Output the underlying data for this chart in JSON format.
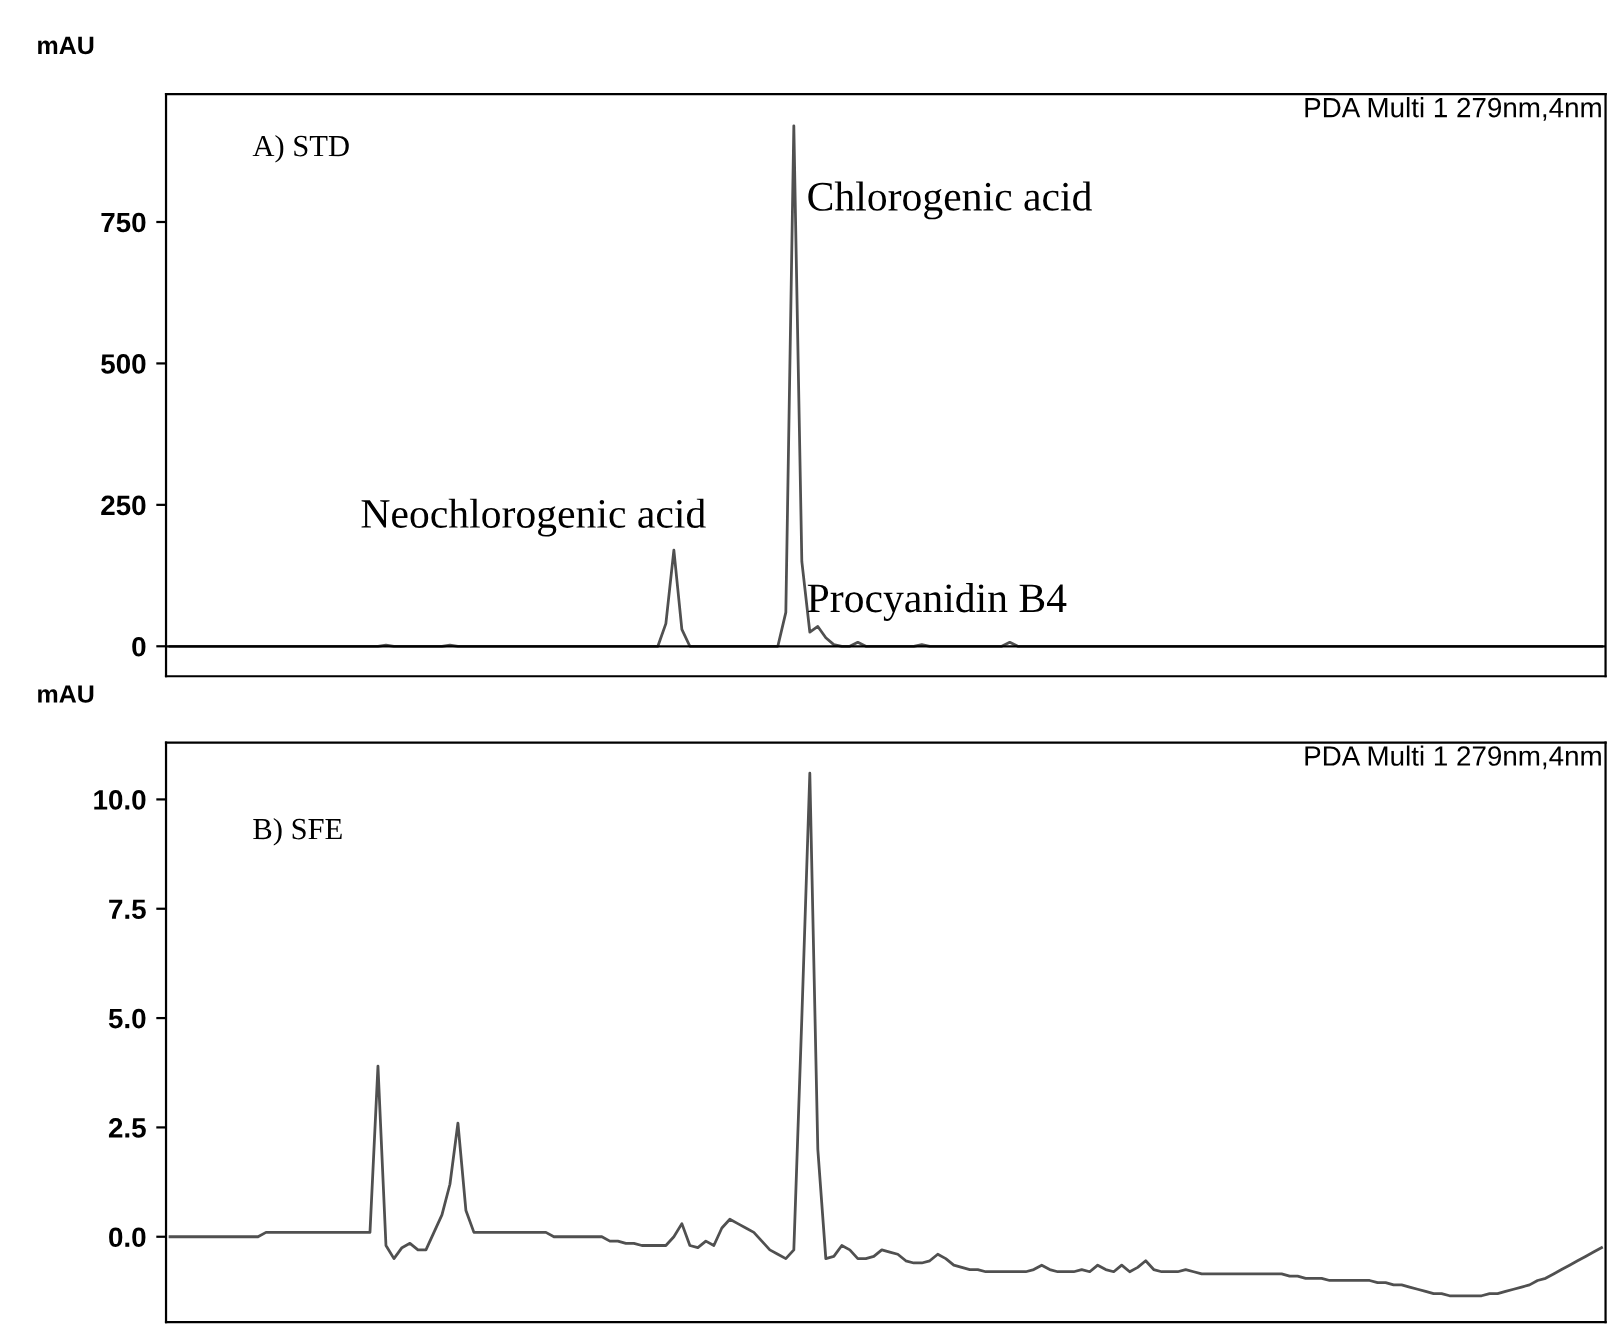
{
  "chart_data": [
    {
      "type": "line",
      "ylabel": "mAU",
      "categories": [
        null,
        null,
        null,
        null,
        null,
        null,
        null,
        null,
        null,
        null,
        null,
        null,
        null,
        null,
        null,
        null,
        null,
        null,
        null,
        null,
        null,
        null,
        null,
        null,
        null,
        null,
        null,
        null,
        null,
        null,
        null,
        null,
        null,
        null,
        null,
        null,
        null,
        null,
        null,
        null,
        null,
        null,
        null,
        null,
        null,
        null,
        null,
        null,
        null,
        null,
        null,
        null,
        null,
        null,
        null,
        null,
        null,
        null,
        null,
        null,
        null,
        null,
        null,
        null,
        null,
        null,
        null,
        null,
        null,
        null,
        null,
        null,
        null,
        null,
        null,
        null,
        null,
        null,
        null,
        null,
        null,
        null,
        null,
        null,
        null,
        null,
        null,
        null,
        null,
        null,
        null,
        null,
        null,
        null,
        null,
        null,
        null,
        null,
        null,
        null,
        null,
        null,
        null,
        null,
        null,
        null,
        null,
        null,
        null,
        null,
        null,
        null,
        null,
        null,
        null,
        null,
        null,
        null,
        null,
        null,
        null,
        null,
        null,
        null,
        null,
        null,
        null,
        null,
        null,
        null,
        null,
        null,
        null,
        null,
        null,
        null,
        null,
        null,
        null,
        null,
        null,
        null,
        null,
        null,
        null,
        null,
        null,
        null,
        null,
        null,
        null,
        null,
        null,
        null,
        null,
        null,
        null,
        null,
        null,
        null,
        null,
        null,
        null,
        null,
        null,
        null,
        null,
        null,
        null,
        null,
        null,
        null,
        null,
        null,
        null,
        null,
        null,
        null,
        null,
        null
      ],
      "series": [
        {
          "color": "#505050",
          "values": [
            0,
            0,
            0,
            0,
            0,
            0,
            0,
            0,
            0,
            0,
            0,
            0,
            0,
            0,
            0,
            0,
            0,
            0,
            0,
            0,
            0,
            0,
            0,
            0,
            0,
            0,
            0,
            2,
            0,
            0,
            0,
            0,
            0,
            0,
            0,
            2,
            0,
            0,
            0,
            0,
            0,
            0,
            0,
            0,
            0,
            0,
            0,
            0,
            0,
            0,
            0,
            0,
            0,
            0,
            0,
            0,
            0,
            0,
            0,
            0,
            0,
            0,
            40,
            170,
            30,
            0,
            0,
            0,
            0,
            0,
            0,
            0,
            0,
            0,
            0,
            0,
            0,
            60,
            920,
            150,
            25,
            35,
            15,
            3,
            0,
            0,
            7,
            0,
            0,
            0,
            0,
            0,
            0,
            0,
            3,
            0,
            0,
            0,
            0,
            0,
            0,
            0,
            0,
            0,
            0,
            7,
            0,
            0,
            0,
            0,
            0,
            0,
            0,
            0,
            0,
            0,
            0,
            0,
            0,
            0,
            0,
            0,
            0,
            0,
            0,
            0,
            0,
            0,
            0,
            0,
            0,
            0,
            0,
            0,
            0,
            0,
            0,
            0,
            0,
            0,
            0,
            0,
            0,
            0,
            0,
            0,
            0,
            0,
            0,
            0,
            0,
            0,
            0,
            0,
            0,
            0,
            0,
            0,
            0,
            0,
            0,
            0,
            0,
            0,
            0,
            0,
            0,
            0,
            0,
            0,
            0,
            0,
            0,
            0,
            0,
            0,
            0,
            0,
            0,
            0
          ]
        }
      ],
      "ylim": [
        -53,
        976
      ],
      "yticks": [
        0,
        250,
        500,
        750
      ],
      "tick_labels": "y",
      "ref_lines": [
        {
          "axis": "y",
          "value": 0,
          "color": "#000000"
        }
      ],
      "annotations": [
        "PDA Multi 1 279nm,4nm",
        "A) STD",
        "Chlorogenic acid",
        "Neochlorogenic acid",
        "Procyanidin B4"
      ]
    },
    {
      "type": "line",
      "ylabel": "mAU",
      "categories": [
        null,
        null,
        null,
        null,
        null,
        null,
        null,
        null,
        null,
        null,
        null,
        null,
        null,
        null,
        null,
        null,
        null,
        null,
        null,
        null,
        null,
        null,
        null,
        null,
        null,
        null,
        null,
        null,
        null,
        null,
        null,
        null,
        null,
        null,
        null,
        null,
        null,
        null,
        null,
        null,
        null,
        null,
        null,
        null,
        null,
        null,
        null,
        null,
        null,
        null,
        null,
        null,
        null,
        null,
        null,
        null,
        null,
        null,
        null,
        null,
        null,
        null,
        null,
        null,
        null,
        null,
        null,
        null,
        null,
        null,
        null,
        null,
        null,
        null,
        null,
        null,
        null,
        null,
        null,
        null,
        null,
        null,
        null,
        null,
        null,
        null,
        null,
        null,
        null,
        null,
        null,
        null,
        null,
        null,
        null,
        null,
        null,
        null,
        null,
        null,
        null,
        null,
        null,
        null,
        null,
        null,
        null,
        null,
        null,
        null,
        null,
        null,
        null,
        null,
        null,
        null,
        null,
        null,
        null,
        null,
        null,
        null,
        null,
        null,
        null,
        null,
        null,
        null,
        null,
        null,
        null,
        null,
        null,
        null,
        null,
        null,
        null,
        null,
        null,
        null,
        null,
        null,
        null,
        null,
        null,
        null,
        null,
        null,
        null,
        null,
        null,
        null,
        null,
        null,
        null,
        null,
        null,
        null,
        null,
        null,
        null,
        null,
        null,
        null,
        null,
        null,
        null,
        null,
        null,
        null,
        null,
        null,
        null,
        null,
        null,
        null,
        null,
        null,
        null,
        null
      ],
      "series": [
        {
          "color": "#505050",
          "values": [
            0.0,
            0.0,
            0.0,
            0.0,
            0.0,
            0.0,
            0.0,
            0.0,
            0.0,
            0.0,
            0.0,
            0.0,
            0.1,
            0.1,
            0.1,
            0.1,
            0.1,
            0.1,
            0.1,
            0.1,
            0.1,
            0.1,
            0.1,
            0.1,
            0.1,
            0.1,
            3.9,
            -0.2,
            -0.5,
            -0.25,
            -0.15,
            -0.3,
            -0.3,
            0.1,
            0.5,
            1.2,
            2.6,
            0.6,
            0.1,
            0.1,
            0.1,
            0.1,
            0.1,
            0.1,
            0.1,
            0.1,
            0.1,
            0.1,
            0.0,
            0.0,
            0.0,
            0.0,
            0.0,
            0.0,
            0.0,
            -0.1,
            -0.1,
            -0.15,
            -0.15,
            -0.2,
            -0.2,
            -0.2,
            -0.2,
            0.0,
            0.3,
            -0.2,
            -0.25,
            -0.1,
            -0.2,
            0.2,
            0.4,
            0.3,
            0.2,
            0.1,
            -0.1,
            -0.3,
            -0.4,
            -0.5,
            -0.3,
            5.0,
            10.6,
            2.0,
            -0.5,
            -0.45,
            -0.2,
            -0.3,
            -0.5,
            -0.5,
            -0.45,
            -0.3,
            -0.35,
            -0.4,
            -0.55,
            -0.6,
            -0.6,
            -0.55,
            -0.4,
            -0.5,
            -0.65,
            -0.7,
            -0.75,
            -0.75,
            -0.8,
            -0.8,
            -0.8,
            -0.8,
            -0.8,
            -0.8,
            -0.75,
            -0.65,
            -0.75,
            -0.8,
            -0.8,
            -0.8,
            -0.75,
            -0.8,
            -0.65,
            -0.75,
            -0.8,
            -0.65,
            -0.8,
            -0.7,
            -0.55,
            -0.75,
            -0.8,
            -0.8,
            -0.8,
            -0.75,
            -0.8,
            -0.85,
            -0.85,
            -0.85,
            -0.85,
            -0.85,
            -0.85,
            -0.85,
            -0.85,
            -0.85,
            -0.85,
            -0.85,
            -0.9,
            -0.9,
            -0.95,
            -0.95,
            -0.95,
            -1.0,
            -1.0,
            -1.0,
            -1.0,
            -1.0,
            -1.0,
            -1.05,
            -1.05,
            -1.1,
            -1.1,
            -1.15,
            -1.2,
            -1.25,
            -1.3,
            -1.3,
            -1.35,
            -1.35,
            -1.35,
            -1.35,
            -1.35,
            -1.3,
            -1.3,
            -1.25,
            -1.2,
            -1.15,
            -1.1,
            -1.0,
            -0.95,
            -0.85,
            -0.75,
            -0.65,
            -0.55,
            -0.45,
            -0.35,
            -0.25
          ]
        }
      ],
      "ylim": [
        -1.95,
        11.3
      ],
      "yticks": [
        {
          "value": 0,
          "label": "0.0"
        },
        {
          "value": 2.5,
          "label": "2.5"
        },
        {
          "value": 5,
          "label": "5.0"
        },
        {
          "value": 7.5,
          "label": "7.5"
        },
        {
          "value": 10,
          "label": "10.0"
        }
      ],
      "tick_labels": "y",
      "annotations": [
        "PDA Multi 1 279nm,4nm",
        "B) SFE"
      ]
    }
  ]
}
